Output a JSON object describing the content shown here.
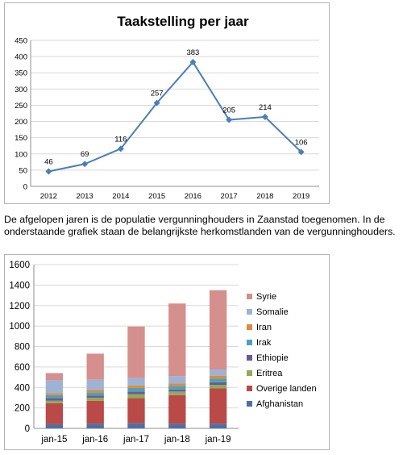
{
  "paragraph": {
    "line1": "De afgelopen jaren is de populatie vergunninghouders in Zaanstad toegenomen. In de",
    "line2": "onderstaande grafiek staan de belangrijkste herkomstlanden van de vergunninghouders."
  },
  "chart_data": [
    {
      "type": "line",
      "title": "Taakstelling per jaar",
      "categories": [
        "2012",
        "2013",
        "2014",
        "2015",
        "2016",
        "2017",
        "2018",
        "2019"
      ],
      "values": [
        46,
        69,
        116,
        257,
        383,
        205,
        214,
        106
      ],
      "data_labels": [
        "46",
        "69",
        "116",
        "257",
        "383",
        "205",
        "214",
        "106"
      ],
      "ylim": [
        0,
        450
      ],
      "yticks": [
        "0",
        "50",
        "100",
        "150",
        "200",
        "250",
        "300",
        "350",
        "400",
        "450"
      ],
      "grid": true,
      "color": "#4a7ebb"
    },
    {
      "type": "bar",
      "stacked": true,
      "categories": [
        "jan-15",
        "jan-16",
        "jan-17",
        "jan-18",
        "jan-19"
      ],
      "ylim": [
        0,
        1600
      ],
      "yticks": [
        "0",
        "200",
        "400",
        "600",
        "800",
        "1000",
        "1200",
        "1400",
        "1600"
      ],
      "grid": true,
      "legend": "right",
      "series": [
        {
          "name": "Afghanistan",
          "color": "#4f6fa3",
          "values": [
            40,
            45,
            50,
            45,
            45
          ]
        },
        {
          "name": "Overige landen",
          "color": "#b94a48",
          "values": [
            205,
            225,
            245,
            280,
            345
          ]
        },
        {
          "name": "Eritrea",
          "color": "#93a85a",
          "values": [
            25,
            30,
            40,
            35,
            35
          ]
        },
        {
          "name": "Ethiopie",
          "color": "#6b5b95",
          "values": [
            25,
            20,
            25,
            20,
            25
          ]
        },
        {
          "name": "Irak",
          "color": "#4ba3b8",
          "values": [
            30,
            30,
            35,
            35,
            35
          ]
        },
        {
          "name": "Iran",
          "color": "#e08a3c",
          "values": [
            20,
            25,
            25,
            25,
            30
          ]
        },
        {
          "name": "Somalie",
          "color": "#9db3d6",
          "values": [
            125,
            100,
            70,
            70,
            60
          ]
        },
        {
          "name": "Syrie",
          "color": "#d58f8d",
          "values": [
            70,
            255,
            505,
            710,
            775
          ]
        }
      ]
    }
  ]
}
